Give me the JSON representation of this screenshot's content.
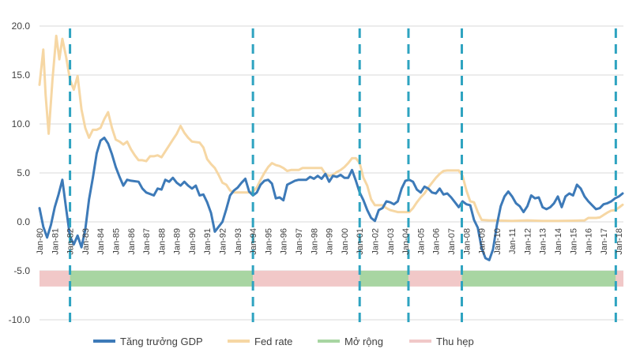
{
  "chart_data": {
    "type": "line",
    "title": "",
    "xlabel": "",
    "ylabel": "",
    "ylim": [
      -10,
      20
    ],
    "y_ticks": [
      "20.0",
      "15.0",
      "10.0",
      "5.0",
      "0.0",
      "-5.0",
      "-10.0"
    ],
    "x_ticks": [
      "Jan-80",
      "Jan-81",
      "Jan-82",
      "Jan-83",
      "Jan-84",
      "Jan-85",
      "Jan-86",
      "Jan-87",
      "Jan-88",
      "Jan-89",
      "Jan-90",
      "Jan-91",
      "Jan-92",
      "Jan-93",
      "Jan-94",
      "Jan-95",
      "Jan-96",
      "Jan-97",
      "Jan-98",
      "Jan-99",
      "Jan-00",
      "Jan-01",
      "Jan-02",
      "Jan-03",
      "Jan-04",
      "Jan-05",
      "Jan-06",
      "Jan-07",
      "Jan-08",
      "Jan-09",
      "Jan-10",
      "Jan-11",
      "Jan-12",
      "Jan-13",
      "Jan-14",
      "Jan-15",
      "Jan-16",
      "Jan-17",
      "Jan-18"
    ],
    "grid": "horizontal",
    "legend_position": "bottom",
    "colors": {
      "gdp": "#3d7ab8",
      "fed": "#f6d7a4",
      "expansion": "#a8d5a2",
      "contraction": "#f1c8c8",
      "divider": "#2ea3c0"
    },
    "series": [
      {
        "name": "Tăng trưởng GDP",
        "points": [
          [
            1980.0,
            1.4
          ],
          [
            1980.25,
            -0.5
          ],
          [
            1980.5,
            -1.6
          ],
          [
            1980.75,
            -0.3
          ],
          [
            1981.0,
            1.5
          ],
          [
            1981.25,
            2.8
          ],
          [
            1981.5,
            4.3
          ],
          [
            1981.75,
            1.3
          ],
          [
            1982.0,
            -1.5
          ],
          [
            1982.25,
            -2.3
          ],
          [
            1982.5,
            -1.4
          ],
          [
            1982.75,
            -2.6
          ],
          [
            1983.0,
            -0.8
          ],
          [
            1983.25,
            2.3
          ],
          [
            1983.5,
            4.5
          ],
          [
            1983.75,
            7.0
          ],
          [
            1984.0,
            8.3
          ],
          [
            1984.25,
            8.6
          ],
          [
            1984.5,
            8.0
          ],
          [
            1984.75,
            6.9
          ],
          [
            1985.0,
            5.6
          ],
          [
            1985.25,
            4.6
          ],
          [
            1985.5,
            3.7
          ],
          [
            1985.75,
            4.3
          ],
          [
            1986.0,
            4.2
          ],
          [
            1986.5,
            4.1
          ],
          [
            1986.75,
            3.4
          ],
          [
            1987.0,
            3.0
          ],
          [
            1987.5,
            2.7
          ],
          [
            1987.75,
            3.4
          ],
          [
            1988.0,
            3.3
          ],
          [
            1988.25,
            4.3
          ],
          [
            1988.5,
            4.1
          ],
          [
            1988.75,
            4.5
          ],
          [
            1989.0,
            4.0
          ],
          [
            1989.25,
            3.7
          ],
          [
            1989.5,
            4.1
          ],
          [
            1989.75,
            3.7
          ],
          [
            1990.0,
            3.4
          ],
          [
            1990.25,
            3.7
          ],
          [
            1990.5,
            2.7
          ],
          [
            1990.75,
            2.8
          ],
          [
            1991.0,
            2.0
          ],
          [
            1991.25,
            0.9
          ],
          [
            1991.5,
            -1.0
          ],
          [
            1991.75,
            -0.5
          ],
          [
            1992.0,
            0.0
          ],
          [
            1992.25,
            1.3
          ],
          [
            1992.5,
            2.7
          ],
          [
            1992.75,
            3.2
          ],
          [
            1993.0,
            3.5
          ],
          [
            1993.25,
            4.0
          ],
          [
            1993.5,
            4.4
          ],
          [
            1993.75,
            3.1
          ],
          [
            1994.0,
            2.7
          ],
          [
            1994.25,
            3.0
          ],
          [
            1994.5,
            3.8
          ],
          [
            1994.75,
            4.2
          ],
          [
            1995.0,
            4.3
          ],
          [
            1995.25,
            3.9
          ],
          [
            1995.5,
            2.4
          ],
          [
            1995.75,
            2.5
          ],
          [
            1996.0,
            2.2
          ],
          [
            1996.25,
            3.8
          ],
          [
            1996.5,
            4.0
          ],
          [
            1996.75,
            4.2
          ],
          [
            1997.0,
            4.3
          ],
          [
            1997.5,
            4.3
          ],
          [
            1997.75,
            4.6
          ],
          [
            1998.0,
            4.4
          ],
          [
            1998.25,
            4.7
          ],
          [
            1998.5,
            4.4
          ],
          [
            1998.75,
            4.9
          ],
          [
            1999.0,
            4.1
          ],
          [
            1999.25,
            4.7
          ],
          [
            1999.5,
            4.6
          ],
          [
            1999.75,
            4.8
          ],
          [
            2000.0,
            4.5
          ],
          [
            2000.25,
            4.5
          ],
          [
            2000.5,
            5.3
          ],
          [
            2000.75,
            4.2
          ],
          [
            2001.0,
            3.0
          ],
          [
            2001.25,
            2.2
          ],
          [
            2001.5,
            1.2
          ],
          [
            2001.75,
            0.4
          ],
          [
            2002.0,
            0.1
          ],
          [
            2002.25,
            1.2
          ],
          [
            2002.5,
            1.4
          ],
          [
            2002.75,
            2.1
          ],
          [
            2003.0,
            2.0
          ],
          [
            2003.25,
            1.8
          ],
          [
            2003.5,
            2.1
          ],
          [
            2003.75,
            3.4
          ],
          [
            2004.0,
            4.2
          ],
          [
            2004.25,
            4.3
          ],
          [
            2004.5,
            4.1
          ],
          [
            2004.75,
            3.3
          ],
          [
            2005.0,
            3.0
          ],
          [
            2005.25,
            3.6
          ],
          [
            2005.5,
            3.4
          ],
          [
            2005.75,
            3.0
          ],
          [
            2006.0,
            2.9
          ],
          [
            2006.25,
            3.4
          ],
          [
            2006.5,
            2.8
          ],
          [
            2006.75,
            2.9
          ],
          [
            2007.0,
            2.5
          ],
          [
            2007.25,
            2.0
          ],
          [
            2007.5,
            1.5
          ],
          [
            2007.75,
            2.1
          ],
          [
            2008.0,
            1.8
          ],
          [
            2008.25,
            1.7
          ],
          [
            2008.5,
            0.2
          ],
          [
            2008.75,
            -0.6
          ],
          [
            2009.0,
            -2.7
          ],
          [
            2009.25,
            -3.7
          ],
          [
            2009.5,
            -3.9
          ],
          [
            2009.75,
            -2.8
          ],
          [
            2010.0,
            -0.3
          ],
          [
            2010.25,
            1.6
          ],
          [
            2010.5,
            2.6
          ],
          [
            2010.75,
            3.1
          ],
          [
            2011.0,
            2.6
          ],
          [
            2011.25,
            1.9
          ],
          [
            2011.5,
            1.6
          ],
          [
            2011.75,
            1.0
          ],
          [
            2012.0,
            1.6
          ],
          [
            2012.25,
            2.7
          ],
          [
            2012.5,
            2.4
          ],
          [
            2012.75,
            2.5
          ],
          [
            2013.0,
            1.5
          ],
          [
            2013.25,
            1.3
          ],
          [
            2013.5,
            1.5
          ],
          [
            2013.75,
            1.9
          ],
          [
            2014.0,
            2.6
          ],
          [
            2014.25,
            1.5
          ],
          [
            2014.5,
            2.6
          ],
          [
            2014.75,
            2.9
          ],
          [
            2015.0,
            2.7
          ],
          [
            2015.25,
            3.8
          ],
          [
            2015.5,
            3.4
          ],
          [
            2015.75,
            2.6
          ],
          [
            2016.0,
            2.1
          ],
          [
            2016.25,
            1.7
          ],
          [
            2016.5,
            1.3
          ],
          [
            2016.75,
            1.4
          ],
          [
            2017.0,
            1.8
          ],
          [
            2017.25,
            1.9
          ],
          [
            2017.5,
            2.1
          ],
          [
            2017.75,
            2.4
          ],
          [
            2018.0,
            2.6
          ],
          [
            2018.25,
            2.9
          ]
        ]
      },
      {
        "name": "Fed rate",
        "points": [
          [
            1980.0,
            14.0
          ],
          [
            1980.25,
            17.6
          ],
          [
            1980.4,
            13.0
          ],
          [
            1980.6,
            9.0
          ],
          [
            1980.85,
            14.5
          ],
          [
            1981.1,
            19.0
          ],
          [
            1981.3,
            16.6
          ],
          [
            1981.5,
            18.7
          ],
          [
            1981.75,
            16.8
          ],
          [
            1982.0,
            14.5
          ],
          [
            1982.25,
            13.5
          ],
          [
            1982.5,
            14.9
          ],
          [
            1982.75,
            11.5
          ],
          [
            1983.0,
            9.6
          ],
          [
            1983.25,
            8.6
          ],
          [
            1983.5,
            9.4
          ],
          [
            1983.75,
            9.4
          ],
          [
            1984.0,
            9.6
          ],
          [
            1984.25,
            10.5
          ],
          [
            1984.5,
            11.2
          ],
          [
            1984.75,
            9.6
          ],
          [
            1985.0,
            8.4
          ],
          [
            1985.25,
            8.2
          ],
          [
            1985.5,
            7.9
          ],
          [
            1985.75,
            8.2
          ],
          [
            1986.0,
            7.4
          ],
          [
            1986.25,
            6.8
          ],
          [
            1986.5,
            6.3
          ],
          [
            1986.75,
            6.3
          ],
          [
            1987.0,
            6.2
          ],
          [
            1987.25,
            6.7
          ],
          [
            1987.5,
            6.7
          ],
          [
            1987.75,
            6.8
          ],
          [
            1988.0,
            6.6
          ],
          [
            1988.25,
            7.2
          ],
          [
            1988.5,
            7.8
          ],
          [
            1988.75,
            8.4
          ],
          [
            1989.0,
            9.0
          ],
          [
            1989.25,
            9.8
          ],
          [
            1989.5,
            9.1
          ],
          [
            1989.75,
            8.6
          ],
          [
            1990.0,
            8.2
          ],
          [
            1990.5,
            8.1
          ],
          [
            1990.75,
            7.6
          ],
          [
            1991.0,
            6.4
          ],
          [
            1991.25,
            5.9
          ],
          [
            1991.5,
            5.5
          ],
          [
            1991.75,
            4.8
          ],
          [
            1992.0,
            4.0
          ],
          [
            1992.25,
            3.8
          ],
          [
            1992.5,
            3.2
          ],
          [
            1992.75,
            3.0
          ],
          [
            1993.0,
            3.0
          ],
          [
            1993.5,
            3.0
          ],
          [
            1993.75,
            3.0
          ],
          [
            1994.0,
            3.1
          ],
          [
            1994.25,
            3.5
          ],
          [
            1994.5,
            4.3
          ],
          [
            1994.75,
            5.0
          ],
          [
            1995.0,
            5.6
          ],
          [
            1995.25,
            6.0
          ],
          [
            1995.5,
            5.8
          ],
          [
            1995.75,
            5.7
          ],
          [
            1996.0,
            5.5
          ],
          [
            1996.25,
            5.2
          ],
          [
            1996.5,
            5.3
          ],
          [
            1996.75,
            5.3
          ],
          [
            1997.0,
            5.3
          ],
          [
            1997.25,
            5.5
          ],
          [
            1997.5,
            5.5
          ],
          [
            1997.75,
            5.5
          ],
          [
            1998.0,
            5.5
          ],
          [
            1998.5,
            5.5
          ],
          [
            1998.75,
            4.9
          ],
          [
            1999.0,
            4.7
          ],
          [
            1999.25,
            4.8
          ],
          [
            1999.5,
            5.1
          ],
          [
            1999.75,
            5.3
          ],
          [
            2000.0,
            5.6
          ],
          [
            2000.25,
            6.0
          ],
          [
            2000.5,
            6.5
          ],
          [
            2000.75,
            6.5
          ],
          [
            2001.0,
            6.0
          ],
          [
            2001.25,
            4.5
          ],
          [
            2001.5,
            3.7
          ],
          [
            2001.75,
            2.3
          ],
          [
            2002.0,
            1.7
          ],
          [
            2002.5,
            1.7
          ],
          [
            2002.75,
            1.4
          ],
          [
            2003.0,
            1.2
          ],
          [
            2003.5,
            1.0
          ],
          [
            2003.75,
            1.0
          ],
          [
            2004.0,
            1.0
          ],
          [
            2004.25,
            1.0
          ],
          [
            2004.5,
            1.4
          ],
          [
            2004.75,
            2.0
          ],
          [
            2005.0,
            2.5
          ],
          [
            2005.25,
            2.9
          ],
          [
            2005.5,
            3.5
          ],
          [
            2005.75,
            4.0
          ],
          [
            2006.0,
            4.5
          ],
          [
            2006.25,
            4.9
          ],
          [
            2006.5,
            5.2
          ],
          [
            2006.75,
            5.25
          ],
          [
            2007.0,
            5.25
          ],
          [
            2007.5,
            5.25
          ],
          [
            2007.75,
            4.7
          ],
          [
            2008.0,
            3.2
          ],
          [
            2008.25,
            2.1
          ],
          [
            2008.5,
            2.0
          ],
          [
            2008.75,
            1.0
          ],
          [
            2009.0,
            0.2
          ],
          [
            2009.5,
            0.15
          ],
          [
            2010.0,
            0.15
          ],
          [
            2011.0,
            0.1
          ],
          [
            2012.0,
            0.15
          ],
          [
            2013.0,
            0.1
          ],
          [
            2014.0,
            0.1
          ],
          [
            2015.0,
            0.12
          ],
          [
            2015.75,
            0.15
          ],
          [
            2016.0,
            0.4
          ],
          [
            2016.5,
            0.4
          ],
          [
            2016.75,
            0.45
          ],
          [
            2017.0,
            0.7
          ],
          [
            2017.25,
            0.95
          ],
          [
            2017.5,
            1.15
          ],
          [
            2017.75,
            1.2
          ],
          [
            2018.0,
            1.45
          ],
          [
            2018.25,
            1.75
          ]
        ]
      }
    ],
    "legend": [
      {
        "label": "Tăng trưởng GDP",
        "kind": "line",
        "color": "#3d7ab8"
      },
      {
        "label": "Fed rate",
        "kind": "line",
        "color": "#f6d7a4"
      },
      {
        "label": "Mở rộng",
        "kind": "line",
        "color": "#a8d5a2"
      },
      {
        "label": "Thu hẹp",
        "kind": "line",
        "color": "#f1c8c8"
      }
    ],
    "band_level": -5.8,
    "phases": [
      {
        "from": 1980.0,
        "to": 1982.0,
        "type": "contraction"
      },
      {
        "from": 1982.0,
        "to": 1994.0,
        "type": "expansion"
      },
      {
        "from": 1994.0,
        "to": 2001.0,
        "type": "contraction"
      },
      {
        "from": 2001.0,
        "to": 2004.2,
        "type": "expansion"
      },
      {
        "from": 2004.2,
        "to": 2007.7,
        "type": "contraction"
      },
      {
        "from": 2007.7,
        "to": 2017.8,
        "type": "expansion"
      },
      {
        "from": 2017.8,
        "to": 2018.3,
        "type": "contraction"
      }
    ],
    "dividers": [
      1982.0,
      1994.0,
      2001.0,
      2004.2,
      2007.7,
      2017.8
    ]
  }
}
